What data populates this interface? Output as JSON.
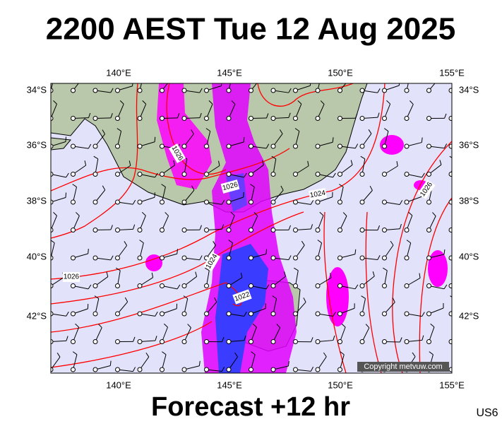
{
  "header": {
    "title": "2200 AEST Tue 12 Aug 2025"
  },
  "map": {
    "lon_labels": [
      "140°E",
      "145°E",
      "150°E",
      "155°E"
    ],
    "lat_labels": [
      "34°S",
      "36°S",
      "38°S",
      "40°S",
      "42°S"
    ],
    "isobar_labels": [
      "1026",
      "1026",
      "1024",
      "1026",
      "1026",
      "1024",
      "1022"
    ],
    "copyright": "Copyright metvuw.com"
  },
  "footer": {
    "forecast": "Forecast +12 hr",
    "code": "US6"
  }
}
